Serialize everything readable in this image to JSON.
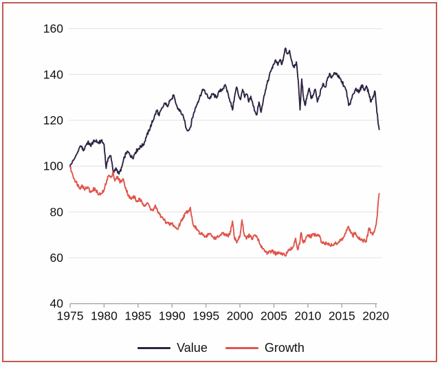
{
  "frame": {
    "border_color": "#c05a4f",
    "background": "#fefefe"
  },
  "chart_data": {
    "type": "line",
    "title": "",
    "xlabel": "",
    "ylabel": "",
    "x_ticks": [
      1975,
      1980,
      1985,
      1990,
      1995,
      2000,
      2005,
      2010,
      2015,
      2020
    ],
    "y_ticks": [
      40,
      60,
      80,
      100,
      120,
      140,
      160
    ],
    "xlim": [
      1975,
      2020.6
    ],
    "ylim": [
      40,
      160
    ],
    "grid": "horizontal",
    "legend_position": "bottom-center",
    "axis_color": "#adadad",
    "gridline_color": "#e7e7e7",
    "tick_label_color": "#111111",
    "noise_amplitude": 0.8,
    "series": [
      {
        "name": "Value",
        "color": "#2d2342",
        "x": [
          1975.0,
          1975.3,
          1975.7,
          1976.0,
          1976.3,
          1976.6,
          1977.0,
          1977.3,
          1977.6,
          1978.0,
          1978.4,
          1978.8,
          1979.2,
          1979.6,
          1980.0,
          1980.3,
          1980.6,
          1981.0,
          1981.4,
          1981.8,
          1982.2,
          1982.6,
          1983.0,
          1983.4,
          1983.8,
          1984.2,
          1984.6,
          1985.0,
          1985.4,
          1985.8,
          1986.2,
          1986.6,
          1987.0,
          1987.4,
          1987.8,
          1988.1,
          1988.4,
          1988.7,
          1989.0,
          1989.3,
          1989.6,
          1990.0,
          1990.2,
          1990.5,
          1990.8,
          1991.2,
          1991.5,
          1991.8,
          1992.1,
          1992.4,
          1992.7,
          1993.0,
          1993.4,
          1993.8,
          1994.2,
          1994.6,
          1995.0,
          1995.5,
          1996.0,
          1996.5,
          1997.0,
          1997.5,
          1997.9,
          1998.3,
          1998.6,
          1998.9,
          1999.2,
          1999.5,
          1999.8,
          2000.1,
          2000.4,
          2000.7,
          2001.0,
          2001.3,
          2001.6,
          2001.9,
          2002.2,
          2002.5,
          2002.8,
          2003.1,
          2003.4,
          2003.7,
          2004.0,
          2004.3,
          2004.6,
          2005.0,
          2005.3,
          2005.6,
          2005.9,
          2006.2,
          2006.7,
          2007.0,
          2007.3,
          2007.6,
          2008.0,
          2008.3,
          2008.6,
          2008.85,
          2009.1,
          2009.35,
          2009.6,
          2009.9,
          2010.2,
          2010.5,
          2010.8,
          2011.1,
          2011.4,
          2011.7,
          2012.0,
          2012.3,
          2012.6,
          2012.9,
          2013.2,
          2013.5,
          2013.8,
          2014.2,
          2014.6,
          2015.0,
          2015.3,
          2015.7,
          2016.0,
          2016.3,
          2016.7,
          2017.1,
          2017.5,
          2018.0,
          2018.3,
          2018.6,
          2019.0,
          2019.3,
          2019.6,
          2019.9,
          2020.1,
          2020.3,
          2020.5
        ],
        "values": [
          100,
          101.5,
          103.5,
          105.5,
          107.5,
          108.5,
          107,
          109,
          110.5,
          109,
          110.5,
          111,
          110,
          111,
          109.5,
          99,
          103.5,
          104.5,
          97,
          99,
          96.5,
          99.5,
          104,
          106.5,
          105,
          103.5,
          106,
          107.5,
          108.5,
          109.5,
          112.5,
          115.5,
          118.5,
          121.5,
          124.5,
          122,
          124.5,
          126,
          127.5,
          126,
          128.5,
          129.5,
          131,
          128,
          125.5,
          124,
          122.5,
          120,
          116.5,
          115.5,
          117,
          121,
          125,
          128,
          131,
          133.5,
          131.5,
          129.5,
          131.5,
          130,
          132.5,
          134,
          135,
          131,
          128,
          124.5,
          130,
          134.5,
          131,
          129,
          133.5,
          130,
          131.5,
          128,
          130.5,
          127,
          124,
          122.5,
          128,
          123.5,
          128,
          132,
          136,
          139,
          142,
          144.5,
          146,
          144,
          146.5,
          144.5,
          151.5,
          149,
          150.5,
          146,
          143,
          145.5,
          137,
          124.5,
          138,
          130,
          126.5,
          131,
          134,
          129.5,
          131,
          133.5,
          128,
          130.5,
          134,
          136,
          134.5,
          138.5,
          140.5,
          138.5,
          140,
          140.5,
          138.5,
          137,
          135,
          132.5,
          126.5,
          128,
          131.5,
          134,
          132,
          135.5,
          133,
          135,
          131.5,
          128,
          130.5,
          132.5,
          126,
          120,
          116
        ]
      },
      {
        "name": "Growth",
        "color": "#e0544a",
        "x": [
          1975.0,
          1975.3,
          1975.6,
          1976.0,
          1976.4,
          1976.8,
          1977.2,
          1977.6,
          1978.0,
          1978.4,
          1978.8,
          1979.2,
          1979.6,
          1980.0,
          1980.4,
          1980.7,
          1981.0,
          1981.3,
          1981.6,
          1982.0,
          1982.4,
          1982.8,
          1983.2,
          1983.6,
          1984.0,
          1984.4,
          1984.8,
          1985.2,
          1985.6,
          1986.0,
          1986.4,
          1986.8,
          1987.2,
          1987.6,
          1988.0,
          1988.4,
          1988.8,
          1989.2,
          1989.6,
          1990.0,
          1990.4,
          1990.8,
          1991.2,
          1991.6,
          1992.0,
          1992.4,
          1992.7,
          1993.0,
          1993.3,
          1993.7,
          1994.1,
          1994.5,
          1995.0,
          1995.5,
          1996.0,
          1996.5,
          1997.0,
          1997.5,
          1998.0,
          1998.5,
          1998.9,
          1999.2,
          1999.6,
          2000.0,
          2000.3,
          2000.6,
          2001.0,
          2001.4,
          2001.8,
          2002.2,
          2002.6,
          2003.0,
          2003.4,
          2003.8,
          2004.2,
          2004.6,
          2005.0,
          2005.4,
          2005.8,
          2006.2,
          2006.6,
          2007.0,
          2007.4,
          2007.8,
          2008.2,
          2008.5,
          2008.8,
          2009.0,
          2009.3,
          2009.6,
          2010.0,
          2010.4,
          2010.8,
          2011.2,
          2011.6,
          2012.0,
          2012.4,
          2012.8,
          2013.2,
          2013.6,
          2014.0,
          2014.4,
          2014.8,
          2015.2,
          2015.6,
          2016.0,
          2016.3,
          2016.6,
          2017.0,
          2017.4,
          2017.8,
          2018.2,
          2018.6,
          2019.0,
          2019.3,
          2019.5,
          2019.8,
          2020.0,
          2020.2,
          2020.35,
          2020.5
        ],
        "values": [
          99.5,
          97,
          94.5,
          92.5,
          90.5,
          91.5,
          90,
          91,
          88.5,
          90,
          89.5,
          87.5,
          88,
          89.5,
          94,
          96,
          95,
          97.5,
          93.5,
          95.5,
          93,
          94.5,
          90.5,
          87,
          85.5,
          87,
          84.5,
          85.5,
          84,
          83,
          84,
          81.5,
          80.5,
          82.5,
          79.5,
          78,
          76.5,
          75.5,
          74.5,
          75,
          73.5,
          72.5,
          75,
          77.5,
          79.5,
          80.5,
          82,
          76,
          73.5,
          72.5,
          70.5,
          70,
          69.5,
          70.5,
          69,
          68.5,
          69.5,
          70.5,
          69.5,
          70,
          76,
          68.5,
          67,
          69.5,
          76.5,
          70.5,
          68.5,
          70,
          68,
          70,
          68.5,
          65.5,
          64,
          62.5,
          62,
          63,
          62.5,
          61.5,
          62,
          61.5,
          61,
          62.5,
          63.5,
          64.5,
          68.5,
          63.5,
          66,
          71,
          66.5,
          67.5,
          70,
          69,
          70.5,
          69.5,
          70,
          67,
          66.5,
          66,
          65.5,
          65.5,
          66,
          66.5,
          67.5,
          68.5,
          71,
          73.5,
          71,
          69.5,
          71,
          69,
          68,
          67.5,
          67,
          73,
          71,
          70,
          71.5,
          74,
          78,
          84.5,
          88
        ]
      }
    ]
  },
  "legend": {
    "items": [
      {
        "label": "Value",
        "color": "#2d2342"
      },
      {
        "label": "Growth",
        "color": "#e0544a"
      }
    ]
  }
}
